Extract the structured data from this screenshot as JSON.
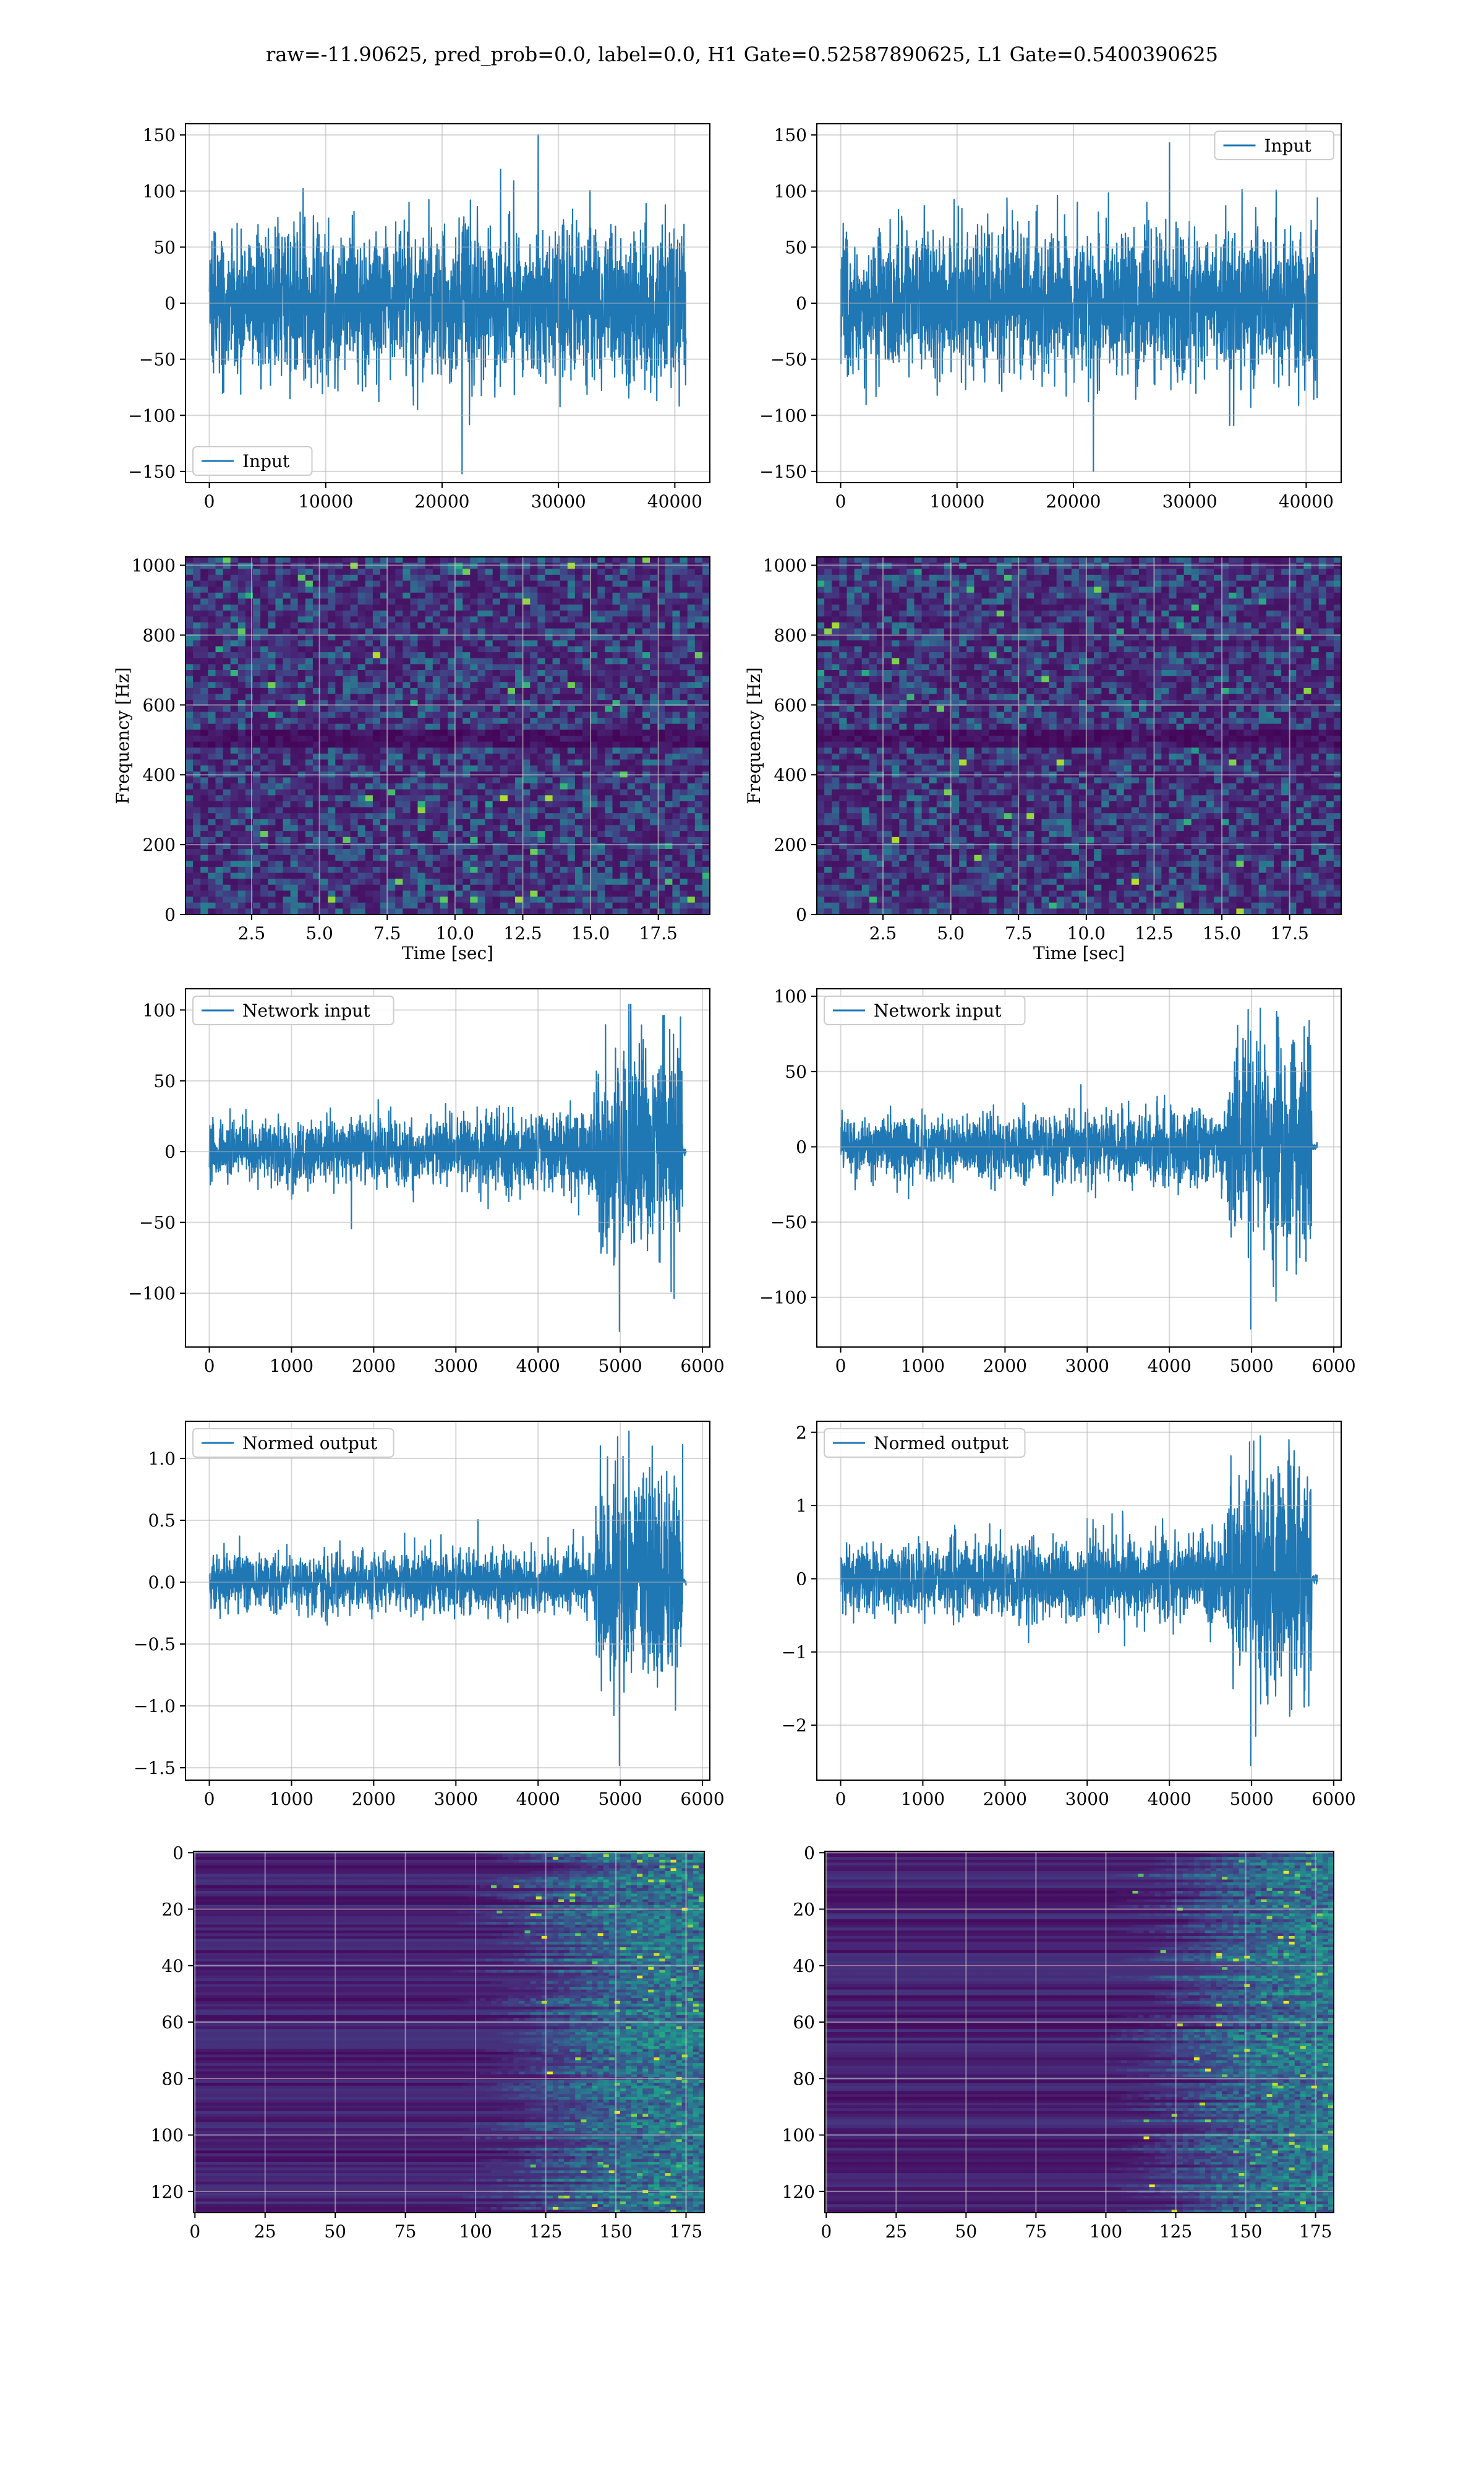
{
  "figure": {
    "suptitle": "raw=-11.90625, pred_prob=0.0, label=0.0, H1 Gate=0.52587890625, L1 Gate=0.5400390625",
    "line_color": "#1f77b4"
  },
  "chart_data": [
    {
      "id": "input-h1",
      "type": "line",
      "title": "",
      "xlabel": "",
      "ylabel": "",
      "xlim": [
        -2048,
        43008
      ],
      "ylim": [
        -160,
        160
      ],
      "xticks": [
        0,
        10000,
        20000,
        30000,
        40000
      ],
      "yticks": [
        -150,
        -100,
        -50,
        0,
        50,
        100,
        150
      ],
      "xtick_labels": [
        "0",
        "10000",
        "20000",
        "30000",
        "40000"
      ],
      "ytick_labels": [
        "−150",
        "−100",
        "−50",
        "0",
        "50",
        "100",
        "150"
      ],
      "grid": true,
      "legend": {
        "entries": [
          "Input"
        ],
        "loc": "lower-left"
      },
      "series": [
        {
          "name": "Input",
          "signal": {
            "kind": "noise",
            "x_start": 0,
            "x_end": 40960,
            "amplitude": 32,
            "min": -152,
            "max": 150
          }
        }
      ]
    },
    {
      "id": "input-l1",
      "type": "line",
      "title": "",
      "xlabel": "",
      "ylabel": "",
      "xlim": [
        -2048,
        43008
      ],
      "ylim": [
        -160,
        160
      ],
      "xticks": [
        0,
        10000,
        20000,
        30000,
        40000
      ],
      "yticks": [
        -150,
        -100,
        -50,
        0,
        50,
        100,
        150
      ],
      "xtick_labels": [
        "0",
        "10000",
        "20000",
        "30000",
        "40000"
      ],
      "ytick_labels": [
        "−150",
        "−100",
        "−50",
        "0",
        "50",
        "100",
        "150"
      ],
      "grid": true,
      "legend": {
        "entries": [
          "Input"
        ],
        "loc": "upper-right"
      },
      "series": [
        {
          "name": "Input",
          "signal": {
            "kind": "noise",
            "x_start": 0,
            "x_end": 40960,
            "amplitude": 32,
            "min": -150,
            "max": 143
          }
        }
      ]
    },
    {
      "id": "spectrogram-h1",
      "type": "heatmap",
      "title": "",
      "xlabel": "Time [sec]",
      "ylabel": "Frequency [Hz]",
      "xlim": [
        0.06,
        19.4
      ],
      "ylim": [
        0,
        1024
      ],
      "xticks": [
        2.5,
        5.0,
        7.5,
        10.0,
        12.5,
        15.0,
        17.5
      ],
      "yticks": [
        0,
        200,
        400,
        600,
        800,
        1000
      ],
      "xtick_labels": [
        "2.5",
        "5.0",
        "7.5",
        "10.0",
        "12.5",
        "15.0",
        "17.5"
      ],
      "ytick_labels": [
        "0",
        "200",
        "400",
        "600",
        "800",
        "1000"
      ],
      "grid": true,
      "colormap": "viridis"
    },
    {
      "id": "spectrogram-l1",
      "type": "heatmap",
      "title": "",
      "xlabel": "Time [sec]",
      "ylabel": "Frequency [Hz]",
      "xlim": [
        0.06,
        19.4
      ],
      "ylim": [
        0,
        1024
      ],
      "xticks": [
        2.5,
        5.0,
        7.5,
        10.0,
        12.5,
        15.0,
        17.5
      ],
      "yticks": [
        0,
        200,
        400,
        600,
        800,
        1000
      ],
      "xtick_labels": [
        "2.5",
        "5.0",
        "7.5",
        "10.0",
        "12.5",
        "15.0",
        "17.5"
      ],
      "ytick_labels": [
        "0",
        "200",
        "400",
        "600",
        "800",
        "1000"
      ],
      "grid": true,
      "colormap": "viridis"
    },
    {
      "id": "network-input-h1",
      "type": "line",
      "title": "",
      "xlabel": "",
      "ylabel": "",
      "xlim": [
        -290,
        6090
      ],
      "ylim": [
        -138,
        115
      ],
      "xticks": [
        0,
        1000,
        2000,
        3000,
        4000,
        5000,
        6000
      ],
      "yticks": [
        -100,
        -50,
        0,
        50,
        100
      ],
      "xtick_labels": [
        "0",
        "1000",
        "2000",
        "3000",
        "4000",
        "5000",
        "6000"
      ],
      "ytick_labels": [
        "−100",
        "−50",
        "0",
        "50",
        "100"
      ],
      "grid": true,
      "legend": {
        "entries": [
          "Network input"
        ],
        "loc": "upper-left"
      },
      "series": [
        {
          "name": "Network input",
          "signal": {
            "kind": "chirp",
            "x_start": 0,
            "x_end": 5800,
            "amp_early": 10,
            "amp_burst": 36,
            "burst_x": 4700,
            "end_x": 5760,
            "min": -127,
            "max": 104
          }
        }
      ]
    },
    {
      "id": "network-input-l1",
      "type": "line",
      "title": "",
      "xlabel": "",
      "ylabel": "",
      "xlim": [
        -290,
        6090
      ],
      "ylim": [
        -133,
        105
      ],
      "xticks": [
        0,
        1000,
        2000,
        3000,
        4000,
        5000,
        6000
      ],
      "yticks": [
        -100,
        -50,
        0,
        50,
        100
      ],
      "xtick_labels": [
        "0",
        "1000",
        "2000",
        "3000",
        "4000",
        "5000",
        "6000"
      ],
      "ytick_labels": [
        "−100",
        "−50",
        "0",
        "50",
        "100"
      ],
      "grid": true,
      "legend": {
        "entries": [
          "Network input"
        ],
        "loc": "upper-left"
      },
      "series": [
        {
          "name": "Network input",
          "signal": {
            "kind": "chirp",
            "x_start": 0,
            "x_end": 5800,
            "amp_early": 9,
            "amp_burst": 32,
            "burst_x": 4700,
            "end_x": 5730,
            "min": -121,
            "max": 92
          }
        }
      ]
    },
    {
      "id": "normed-output-h1",
      "type": "line",
      "title": "",
      "xlabel": "",
      "ylabel": "",
      "xlim": [
        -290,
        6090
      ],
      "ylim": [
        -1.6,
        1.3
      ],
      "xticks": [
        0,
        1000,
        2000,
        3000,
        4000,
        5000,
        6000
      ],
      "yticks": [
        -1.5,
        -1.0,
        -0.5,
        0.0,
        0.5,
        1.0
      ],
      "xtick_labels": [
        "0",
        "1000",
        "2000",
        "3000",
        "4000",
        "5000",
        "6000"
      ],
      "ytick_labels": [
        "−1.5",
        "−1.0",
        "−0.5",
        "0.0",
        "0.5",
        "1.0"
      ],
      "grid": true,
      "legend": {
        "entries": [
          "Normed output"
        ],
        "loc": "upper-left"
      },
      "series": [
        {
          "name": "Normed output",
          "signal": {
            "kind": "chirp",
            "x_start": 0,
            "x_end": 5800,
            "amp_early": 0.1,
            "amp_burst": 0.42,
            "burst_x": 4700,
            "end_x": 5760,
            "min": -1.48,
            "max": 1.22
          }
        }
      ]
    },
    {
      "id": "normed-output-l1",
      "type": "line",
      "title": "",
      "xlabel": "",
      "ylabel": "",
      "xlim": [
        -290,
        6090
      ],
      "ylim": [
        -2.75,
        2.15
      ],
      "xticks": [
        0,
        1000,
        2000,
        3000,
        4000,
        5000,
        6000
      ],
      "yticks": [
        -2,
        -1,
        0,
        1,
        2
      ],
      "xtick_labels": [
        "0",
        "1000",
        "2000",
        "3000",
        "4000",
        "5000",
        "6000"
      ],
      "ytick_labels": [
        "−2",
        "−1",
        "0",
        "1",
        "2"
      ],
      "grid": true,
      "legend": {
        "entries": [
          "Normed output"
        ],
        "loc": "upper-left"
      },
      "series": [
        {
          "name": "Normed output",
          "signal": {
            "kind": "chirp",
            "x_start": 0,
            "x_end": 5800,
            "amp_early": 0.22,
            "amp_burst": 0.75,
            "burst_x": 4700,
            "end_x": 5730,
            "min": -2.55,
            "max": 1.95
          }
        }
      ]
    },
    {
      "id": "feature-map-h1",
      "type": "heatmap",
      "title": "",
      "xlabel": "",
      "ylabel": "",
      "xlim": [
        -0.5,
        181.5
      ],
      "ylim": [
        127.5,
        -0.5
      ],
      "xticks": [
        0,
        25,
        50,
        75,
        100,
        125,
        150,
        175
      ],
      "yticks": [
        0,
        20,
        40,
        60,
        80,
        100,
        120
      ],
      "xtick_labels": [
        "0",
        "25",
        "50",
        "75",
        "100",
        "125",
        "150",
        "175"
      ],
      "ytick_labels": [
        "0",
        "20",
        "40",
        "60",
        "80",
        "100",
        "120"
      ],
      "grid": true,
      "colormap": "viridis",
      "rows": 128,
      "cols": 182,
      "activity_onset_col": 110
    },
    {
      "id": "feature-map-l1",
      "type": "heatmap",
      "title": "",
      "xlabel": "",
      "ylabel": "",
      "xlim": [
        -0.5,
        181.5
      ],
      "ylim": [
        127.5,
        -0.5
      ],
      "xticks": [
        0,
        25,
        50,
        75,
        100,
        125,
        150,
        175
      ],
      "yticks": [
        0,
        20,
        40,
        60,
        80,
        100,
        120
      ],
      "xtick_labels": [
        "0",
        "25",
        "50",
        "75",
        "100",
        "125",
        "150",
        "175"
      ],
      "ytick_labels": [
        "0",
        "20",
        "40",
        "60",
        "80",
        "100",
        "120"
      ],
      "grid": true,
      "colormap": "viridis",
      "rows": 128,
      "cols": 182,
      "activity_onset_col": 115
    }
  ]
}
